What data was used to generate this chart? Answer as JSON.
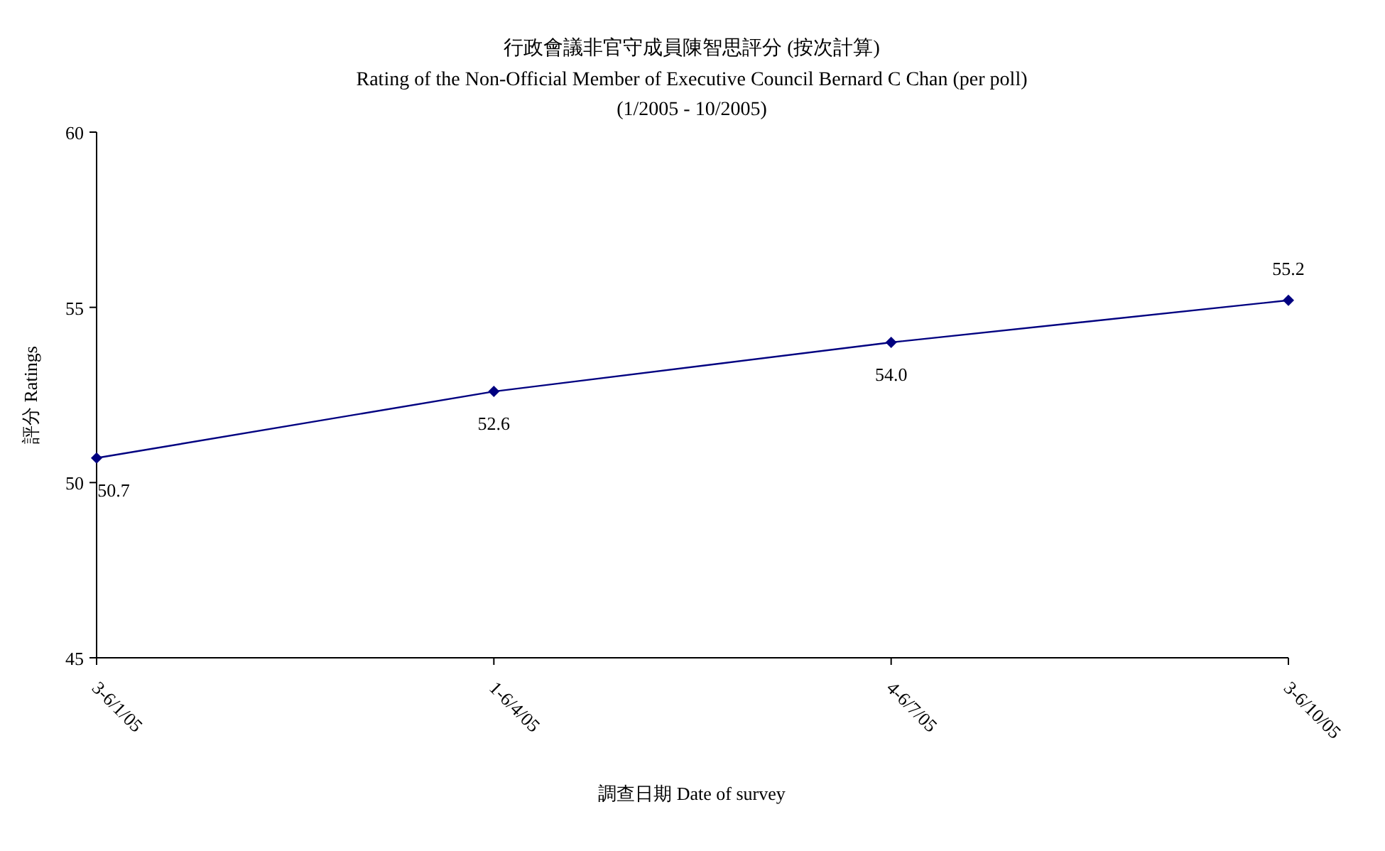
{
  "chart_data": {
    "type": "line",
    "title": "行政會議非官守成員陳智思評分 (按次計算)",
    "subtitle": "Rating of the Non-Official Member of Executive Council Bernard C Chan (per poll)\n(1/2005 - 10/2005)",
    "xlabel": "調查日期 Date of survey",
    "ylabel": "評分 Ratings",
    "categories": [
      "3-6/1/05",
      "1-6/4/05",
      "4-6/7/05",
      "3-6/10/05"
    ],
    "series": [
      {
        "color": "#000080",
        "values": [
          50.7,
          52.6,
          54.0,
          55.2
        ]
      }
    ],
    "value_labels": [
      "50.7",
      "52.6",
      "54.0",
      "55.2"
    ],
    "ylim": [
      45,
      60
    ],
    "yticks": [
      45,
      50,
      55,
      60
    ],
    "grid": false,
    "marker": "diamond",
    "line_style": "solid"
  }
}
